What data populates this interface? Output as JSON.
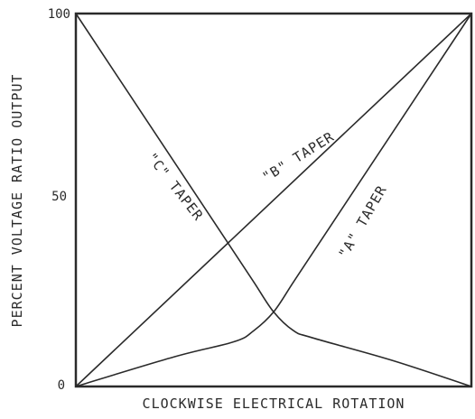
{
  "chart_data": {
    "type": "line",
    "title": "",
    "xlabel": "CLOCKWISE ELECTRICAL ROTATION",
    "ylabel": "PERCENT VOLTAGE RATIO OUTPUT",
    "xlim": [
      0,
      100
    ],
    "ylim": [
      0,
      100
    ],
    "x_tick_labels": [],
    "y_ticks": [
      0,
      50,
      100
    ],
    "y_tick_labels": [
      "0",
      "50",
      "100"
    ],
    "grid": false,
    "legend": "none",
    "series": [
      {
        "label": "\"A\" TAPER",
        "x": [
          0,
          25,
          40,
          45,
          50,
          55,
          60,
          80,
          100
        ],
        "y": [
          0,
          8,
          12,
          15,
          20,
          28,
          36,
          68,
          100
        ]
      },
      {
        "label": "\"B\" TAPER",
        "x": [
          0,
          100
        ],
        "y": [
          0,
          100
        ]
      },
      {
        "label": "\"C\" TAPER",
        "x": [
          0,
          20,
          40,
          45,
          50,
          55,
          60,
          80,
          100
        ],
        "y": [
          100,
          68,
          36,
          28,
          20,
          15,
          13,
          7,
          0
        ]
      }
    ],
    "colors": {
      "line": "#2a2a2a",
      "background": "#ffffff"
    }
  }
}
